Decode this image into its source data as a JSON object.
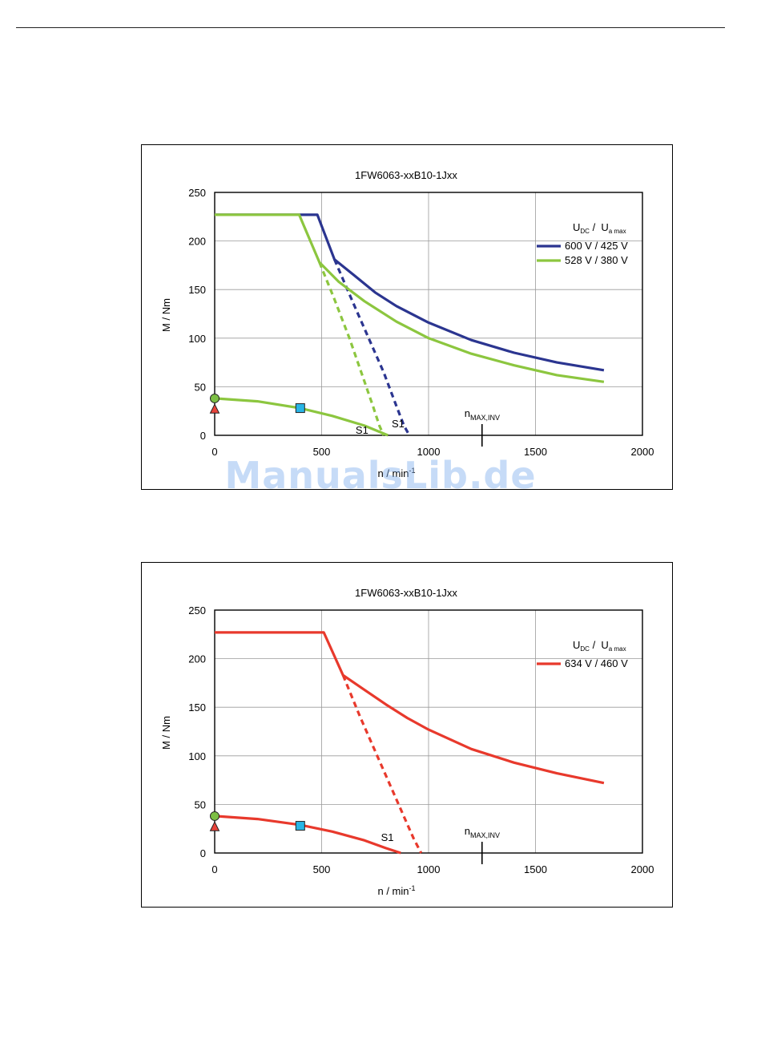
{
  "watermark": "ManualsLib.de",
  "chart_data": [
    {
      "type": "line",
      "title": "1FW6063-xxB10-1Jxx",
      "xlabel": "n / min",
      "xlabel_sup": "-1",
      "ylabel": "M / Nm",
      "xlim": [
        0,
        2000
      ],
      "ylim": [
        0,
        250
      ],
      "xticks": [
        "0",
        "500",
        "1000",
        "1500",
        "2000"
      ],
      "yticks": [
        "0",
        "50",
        "100",
        "150",
        "200",
        "250"
      ],
      "grid": true,
      "legend_position": "top-right",
      "legend_header": {
        "u": "U",
        "dc": "DC",
        "sep": "/",
        "u2": "U",
        "amax": "a max"
      },
      "series": [
        {
          "name": "600 V / 425 V",
          "color": "#2b3590",
          "points": [
            [
              0,
              227
            ],
            [
              480,
              227
            ],
            [
              560,
              181
            ],
            [
              650,
              165
            ],
            [
              750,
              147
            ],
            [
              850,
              133
            ],
            [
              1000,
              116
            ],
            [
              1200,
              98
            ],
            [
              1400,
              85
            ],
            [
              1600,
              75
            ],
            [
              1820,
              67
            ]
          ],
          "dashed": [
            [
              560,
              181
            ],
            [
              640,
              140
            ],
            [
              720,
              100
            ],
            [
              790,
              65
            ],
            [
              850,
              30
            ],
            [
              885,
              10
            ],
            [
              910,
              0
            ]
          ],
          "s1_label": "S1"
        },
        {
          "name": "528 V / 380 V",
          "color": "#8cc63f",
          "points": [
            [
              0,
              227
            ],
            [
              395,
              227
            ],
            [
              490,
              178
            ],
            [
              580,
              158
            ],
            [
              700,
              138
            ],
            [
              850,
              117
            ],
            [
              1000,
              100
            ],
            [
              1200,
              84
            ],
            [
              1400,
              72
            ],
            [
              1600,
              62
            ],
            [
              1820,
              55
            ]
          ],
          "dashed": [
            [
              490,
              178
            ],
            [
              560,
              140
            ],
            [
              630,
              100
            ],
            [
              690,
              62
            ],
            [
              740,
              30
            ],
            [
              770,
              10
            ],
            [
              790,
              0
            ]
          ],
          "s1_label": "S1"
        }
      ],
      "continuous_curve": {
        "color": "#8cc63f",
        "points": [
          [
            0,
            38
          ],
          [
            200,
            35
          ],
          [
            400,
            28
          ],
          [
            550,
            20
          ],
          [
            700,
            10
          ],
          [
            810,
            0
          ]
        ]
      },
      "markers": {
        "circle": {
          "x": 0,
          "y": 38,
          "color": "#7cbf44"
        },
        "triangle": {
          "x": 0,
          "y": 27,
          "color": "#e8433a"
        },
        "square": {
          "x": 400,
          "y": 28,
          "color": "#29b5e6"
        }
      },
      "nmax_label": "n",
      "nmax_sub": "MAX,INV",
      "nmax_x": 1250
    },
    {
      "type": "line",
      "title": "1FW6063-xxB10-1Jxx",
      "xlabel": "n / min",
      "xlabel_sup": "-1",
      "ylabel": "M / Nm",
      "xlim": [
        0,
        2000
      ],
      "ylim": [
        0,
        250
      ],
      "xticks": [
        "0",
        "500",
        "1000",
        "1500",
        "2000"
      ],
      "yticks": [
        "0",
        "50",
        "100",
        "150",
        "200",
        "250"
      ],
      "grid": true,
      "legend_position": "top-right",
      "legend_header": {
        "u": "U",
        "dc": "DC",
        "sep": "/",
        "u2": "U",
        "amax": "a max"
      },
      "series": [
        {
          "name": "634 V / 460 V",
          "color": "#e8392c",
          "points": [
            [
              0,
              227
            ],
            [
              510,
              227
            ],
            [
              600,
              183
            ],
            [
              700,
              168
            ],
            [
              800,
              153
            ],
            [
              900,
              139
            ],
            [
              1000,
              127
            ],
            [
              1200,
              107
            ],
            [
              1400,
              93
            ],
            [
              1600,
              82
            ],
            [
              1820,
              72
            ]
          ],
          "dashed": [
            [
              600,
              183
            ],
            [
              680,
              140
            ],
            [
              760,
              100
            ],
            [
              830,
              65
            ],
            [
              890,
              35
            ],
            [
              930,
              15
            ],
            [
              965,
              0
            ]
          ],
          "s1_label": "S1"
        }
      ],
      "continuous_curve": {
        "color": "#e8392c",
        "points": [
          [
            0,
            38
          ],
          [
            200,
            35
          ],
          [
            400,
            29
          ],
          [
            550,
            22
          ],
          [
            700,
            13
          ],
          [
            800,
            5
          ],
          [
            870,
            0
          ]
        ]
      },
      "markers": {
        "circle": {
          "x": 0,
          "y": 38,
          "color": "#7cbf44"
        },
        "triangle": {
          "x": 0,
          "y": 27,
          "color": "#e8433a"
        },
        "square": {
          "x": 400,
          "y": 28,
          "color": "#29b5e6"
        }
      },
      "nmax_label": "n",
      "nmax_sub": "MAX,INV",
      "nmax_x": 1250
    }
  ]
}
